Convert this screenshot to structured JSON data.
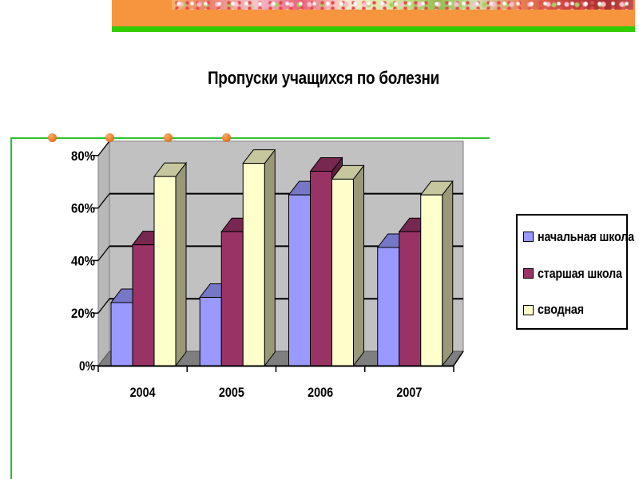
{
  "chart_data": {
    "type": "bar",
    "variant": "3d-clustered-column",
    "title": "Пропуски учащихся по болезни",
    "categories": [
      "2004",
      "2005",
      "2006",
      "2007"
    ],
    "series": [
      {
        "name": "начальная школа",
        "color": "#9999FF",
        "values": [
          24,
          26,
          65,
          45
        ]
      },
      {
        "name": "старшая школа",
        "color": "#993366",
        "values": [
          46,
          51,
          74,
          51
        ]
      },
      {
        "name": "сводная",
        "color": "#FFFFCC",
        "values": [
          72,
          77,
          71,
          65
        ]
      }
    ],
    "y_ticks": [
      "0%",
      "20%",
      "40%",
      "60%",
      "80%"
    ],
    "y_tick_values": [
      0,
      20,
      40,
      60,
      80
    ],
    "ylim": [
      0,
      80
    ],
    "value_unit": "%",
    "legend_position": "right",
    "grid": true,
    "wall_color": "#C1C1C1",
    "side_wall_color": "#B8B8B8",
    "floor_color": "#7F7F7F"
  },
  "decorations": {
    "banner_orange": "#F7943E",
    "banner_green": "#33CC00",
    "frame_green": "#2FBF2F",
    "bullet_orange": "#ED7D31"
  }
}
